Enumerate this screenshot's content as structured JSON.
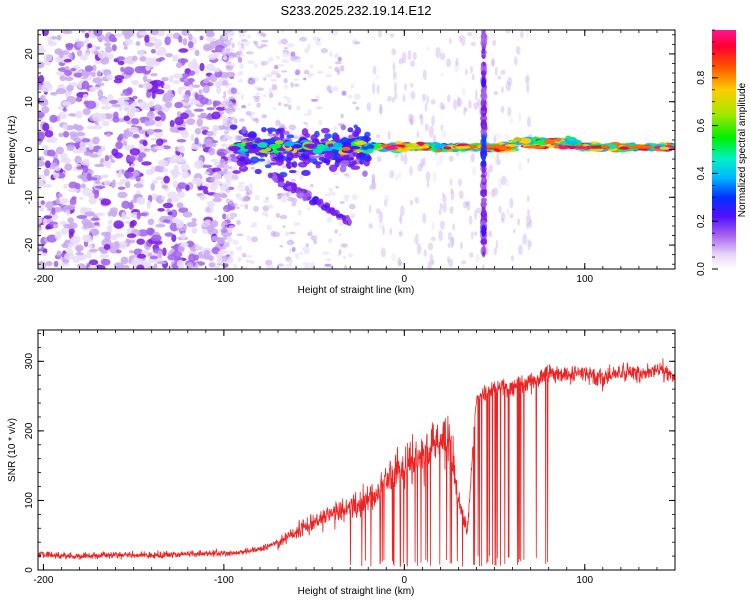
{
  "title": "S233.2025.232.19.14.E12",
  "chart_data": [
    {
      "type": "heatmap",
      "title": "S233.2025.232.19.14.E12",
      "xlabel": "Height of straight line (km)",
      "ylabel": "Frequency (Hz)",
      "xlim": [
        -203,
        150
      ],
      "ylim": [
        -25,
        25
      ],
      "xticks": [
        -200,
        -100,
        0,
        100
      ],
      "yticks": [
        -20,
        -10,
        0,
        10,
        20
      ],
      "colorbar": {
        "label": "Normalized spectral amplitude",
        "range": [
          0,
          1
        ],
        "ticks": [
          0.0,
          0.2,
          0.4,
          0.6,
          0.8
        ],
        "colormap": [
          "#ffffff",
          "#c9a8f0",
          "#7b1fe0",
          "#3010ff",
          "#00c8ff",
          "#00e28a",
          "#00ff00",
          "#a8e600",
          "#ffd000",
          "#ff6a00",
          "#ff0040",
          "#ff1488"
        ]
      },
      "features": {
        "noise_region_km": [
          -203,
          -95
        ],
        "signal_start_km": -95,
        "signal_center_hz": 0.5,
        "vertical_streak_km": 44,
        "vertical_streak_hz": [
          -22,
          25
        ]
      }
    },
    {
      "type": "line",
      "xlabel": "Height of straight line (km)",
      "ylabel": "SNR (10 * v/v)",
      "xlim": [
        -203,
        150
      ],
      "ylim": [
        0,
        345
      ],
      "xticks": [
        -200,
        -100,
        0,
        100
      ],
      "yticks": [
        0,
        100,
        200,
        300
      ],
      "series": [
        {
          "name": "SNR",
          "color": "#ee2222",
          "x": [
            -203,
            -180,
            -160,
            -140,
            -120,
            -100,
            -90,
            -80,
            -70,
            -60,
            -50,
            -40,
            -30,
            -20,
            -10,
            0,
            10,
            20,
            25,
            30,
            35,
            40,
            50,
            60,
            70,
            80,
            90,
            100,
            110,
            120,
            130,
            140,
            150
          ],
          "values": [
            22,
            20,
            22,
            21,
            23,
            24,
            25,
            30,
            40,
            55,
            70,
            80,
            90,
            100,
            130,
            150,
            165,
            190,
            190,
            100,
            60,
            250,
            260,
            265,
            270,
            285,
            280,
            285,
            275,
            285,
            280,
            290,
            280
          ]
        }
      ]
    }
  ]
}
